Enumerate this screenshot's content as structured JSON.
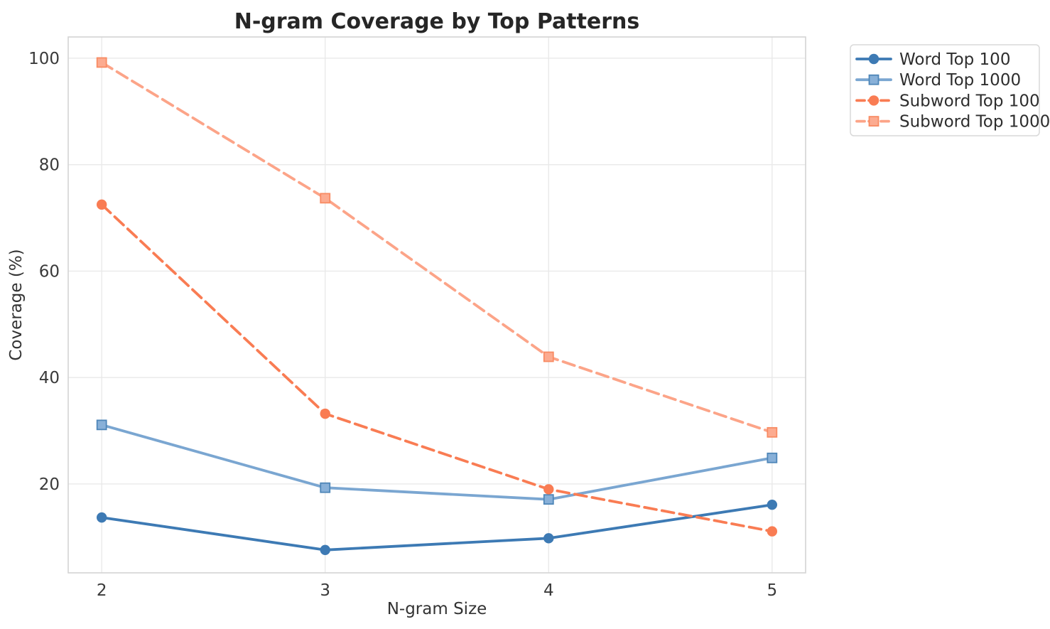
{
  "chart_data": {
    "type": "line",
    "title": "N-gram Coverage by Top Patterns",
    "xlabel": "N-gram Size",
    "ylabel": "Coverage (%)",
    "x": [
      2,
      3,
      4,
      5
    ],
    "xtick_labels": [
      "2",
      "3",
      "4",
      "5"
    ],
    "ytick_values": [
      20,
      40,
      60,
      80,
      100
    ],
    "ytick_labels": [
      "20",
      "40",
      "60",
      "80",
      "100"
    ],
    "xlim": [
      1.85,
      5.15
    ],
    "ylim": [
      3.3,
      104.0
    ],
    "grid": true,
    "legend_position": "outside-upper-right",
    "series": [
      {
        "name": "Word Top 100",
        "color": "#3d7ab4",
        "marker": "circle",
        "marker_fill": "#3d7ab4",
        "marker_edge": "#3d7ab4",
        "line_style": "solid",
        "values": [
          13.7,
          7.6,
          9.8,
          16.1
        ]
      },
      {
        "name": "Word Top 1000",
        "color": "#7aa6d1",
        "marker": "square",
        "marker_fill": "#88b0d8",
        "marker_edge": "#4e86b8",
        "line_style": "solid",
        "values": [
          31.1,
          19.3,
          17.1,
          24.9
        ]
      },
      {
        "name": "Subword Top 100",
        "color": "#f97c53",
        "marker": "circle",
        "marker_fill": "#f97c53",
        "marker_edge": "#f97c53",
        "line_style": "dashed",
        "values": [
          72.5,
          33.2,
          19.0,
          11.1
        ]
      },
      {
        "name": "Subword Top 1000",
        "color": "#fca488",
        "marker": "square",
        "marker_fill": "#fcab90",
        "marker_edge": "#f88b63",
        "line_style": "dashed",
        "values": [
          99.2,
          73.7,
          43.9,
          29.7
        ]
      }
    ],
    "style": {
      "grid_color": "#e9e9e9",
      "spine_color": "#d4d4d4",
      "background": "#ffffff",
      "legend_border": "#d9d9d9",
      "line_width": 3.8,
      "dash_pattern": "17 8"
    }
  }
}
